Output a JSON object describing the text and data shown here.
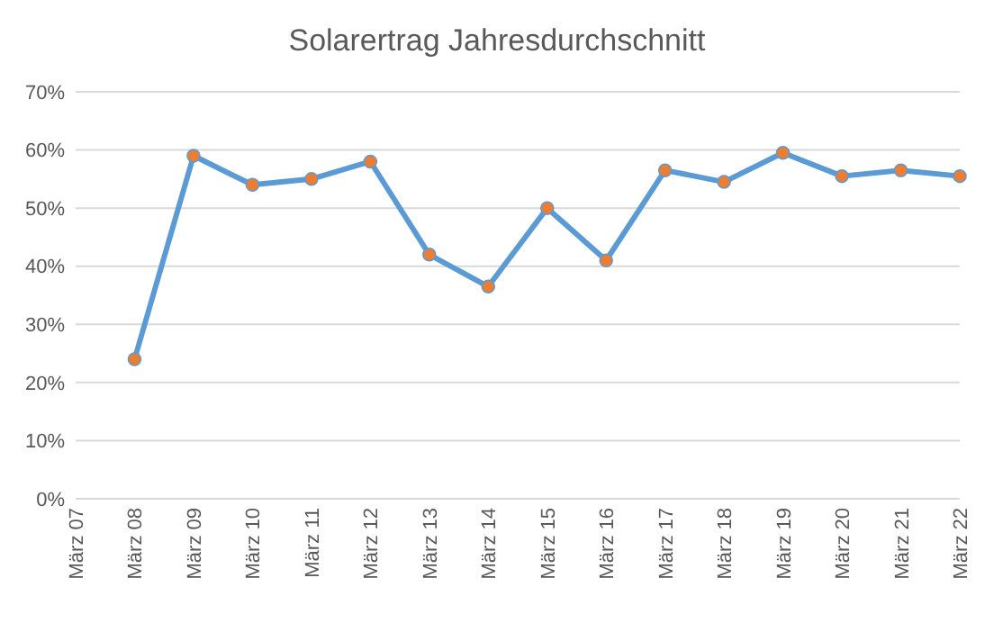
{
  "chart_data": {
    "type": "line",
    "title": "Solarertrag Jahresdurchschnitt",
    "categories": [
      "März 07",
      "März 08",
      "März 09",
      "März 10",
      "März 11",
      "März 12",
      "März 13",
      "März 14",
      "März 15",
      "März 16",
      "März 17",
      "März 18",
      "März 19",
      "März 20",
      "März 21",
      "März 22"
    ],
    "series": [
      {
        "color": "#5b9bd5",
        "colors": [
          null,
          "#ed7d31",
          "#ed7d31",
          "#ed7d31",
          "#ed7d31",
          "#ed7d31",
          "#ed7d31",
          "#ed7d31",
          "#ed7d31",
          "#ed7d31",
          "#ed7d31",
          "#ed7d31",
          "#ed7d31",
          "#ed7d31",
          "#ed7d31",
          "#ed7d31"
        ],
        "values": [
          null,
          24,
          59,
          54,
          55,
          58,
          42,
          36.5,
          50,
          41,
          56.5,
          54.5,
          59.5,
          55.5,
          56.5,
          55.5
        ]
      }
    ],
    "ylim": [
      0,
      70
    ],
    "yticks": [
      {
        "value": 0,
        "label": "0%"
      },
      {
        "value": 10,
        "label": "10%"
      },
      {
        "value": 20,
        "label": "20%"
      },
      {
        "value": 30,
        "label": "30%"
      },
      {
        "value": 40,
        "label": "40%"
      },
      {
        "value": 50,
        "label": "50%"
      },
      {
        "value": 60,
        "label": "60%"
      },
      {
        "value": 70,
        "label": "70%"
      }
    ],
    "grid": "y",
    "marker": "circle",
    "line_style": "solid"
  }
}
